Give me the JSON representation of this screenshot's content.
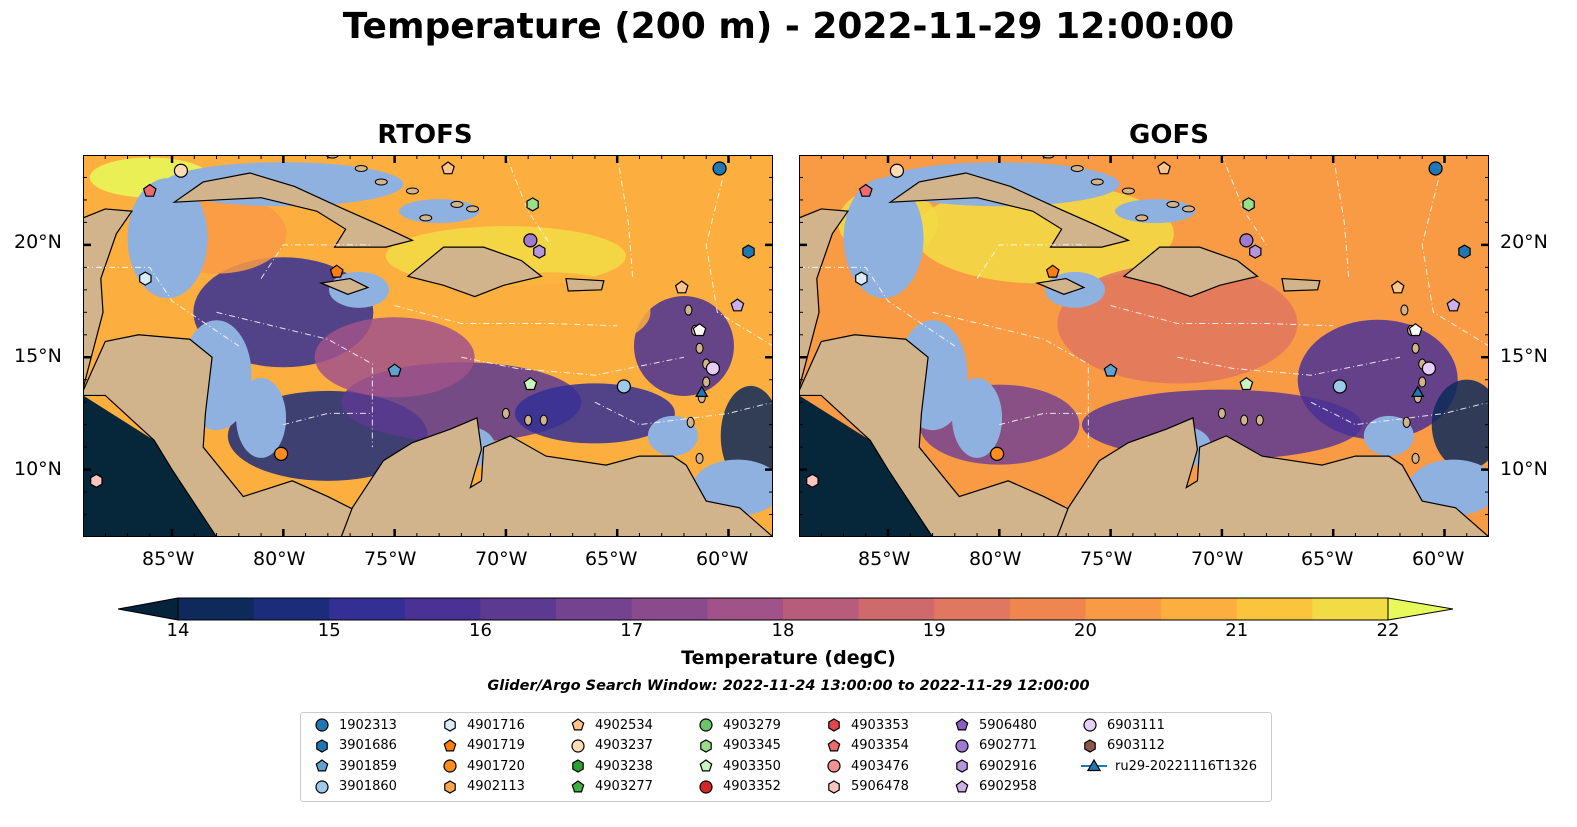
{
  "title": "Temperature (200 m) - 2022-11-29 12:00:00",
  "panels": [
    {
      "title": "RTOFS"
    },
    {
      "title": "GOFS"
    }
  ],
  "axes": {
    "lon_ticks": [
      "85°W",
      "80°W",
      "75°W",
      "70°W",
      "65°W",
      "60°W"
    ],
    "lat_ticks": [
      "20°N",
      "15°N",
      "10°N"
    ],
    "lon_range": [
      -89,
      -58
    ],
    "lat_range": [
      7,
      24
    ]
  },
  "colorbar": {
    "label": "Temperature (degC)",
    "ticks": [
      "14",
      "15",
      "16",
      "17",
      "18",
      "19",
      "20",
      "21",
      "22"
    ],
    "range": [
      14,
      22
    ],
    "extend": "both",
    "colormap": [
      "#05233a",
      "#0d2a5a",
      "#1b2d7a",
      "#342f94",
      "#4a3195",
      "#5d3a92",
      "#74438f",
      "#8a4b8d",
      "#a05289",
      "#b85c7c",
      "#ce6a6c",
      "#e07760",
      "#ef8650",
      "#f99a45",
      "#fcaf3e",
      "#fac53d",
      "#f2dc45",
      "#e8fa5b"
    ]
  },
  "colors": {
    "land": "#d2b48c",
    "shelf": "#8fb1e0",
    "deep_ocean_cold": "#06263a"
  },
  "search_window": "Glider/Argo Search Window: 2022-11-24 13:00:00 to 2022-11-29 12:00:00",
  "legend": [
    {
      "label": "1902313",
      "marker": "circle",
      "color": "#1f77b4"
    },
    {
      "label": "3901686",
      "marker": "hexagon",
      "color": "#1f77b4"
    },
    {
      "label": "3901859",
      "marker": "pentagon",
      "color": "#5fa2d1"
    },
    {
      "label": "3901860",
      "marker": "circle",
      "color": "#9ecae9"
    },
    {
      "label": "4901716",
      "marker": "hexagon",
      "color": "#d9ecf7"
    },
    {
      "label": "4901719",
      "marker": "pentagon",
      "color": "#ff7f0e"
    },
    {
      "label": "4901720",
      "marker": "circle",
      "color": "#ff8c1f"
    },
    {
      "label": "4902113",
      "marker": "hexagon",
      "color": "#ffa654"
    },
    {
      "label": "4902534",
      "marker": "pentagon",
      "color": "#ffc48a"
    },
    {
      "label": "4903237",
      "marker": "circle",
      "color": "#ffdcb5"
    },
    {
      "label": "4903238",
      "marker": "hexagon",
      "color": "#2ca02c"
    },
    {
      "label": "4903277",
      "marker": "pentagon",
      "color": "#3fb03f"
    },
    {
      "label": "4903279",
      "marker": "circle",
      "color": "#6cc46c"
    },
    {
      "label": "4903345",
      "marker": "hexagon",
      "color": "#98df8a"
    },
    {
      "label": "4903350",
      "marker": "pentagon",
      "color": "#c9f5c0"
    },
    {
      "label": "4903352",
      "marker": "circle",
      "color": "#d62728"
    },
    {
      "label": "4903353",
      "marker": "hexagon",
      "color": "#e0474a"
    },
    {
      "label": "4903354",
      "marker": "pentagon",
      "color": "#ec6b6e"
    },
    {
      "label": "4903476",
      "marker": "circle",
      "color": "#f29292"
    },
    {
      "label": "5906478",
      "marker": "hexagon",
      "color": "#ffc3c0"
    },
    {
      "label": "5906480",
      "marker": "pentagon",
      "color": "#8c5fbf"
    },
    {
      "label": "6902771",
      "marker": "circle",
      "color": "#a07ad0"
    },
    {
      "label": "6902916",
      "marker": "hexagon",
      "color": "#b795dd"
    },
    {
      "label": "6902958",
      "marker": "pentagon",
      "color": "#ccb0ea"
    },
    {
      "label": "6903111",
      "marker": "circle",
      "color": "#e6cef7"
    },
    {
      "label": "6903112",
      "marker": "hexagon",
      "color": "#8c564b"
    },
    {
      "label": "ru29-20221116T1326",
      "marker": "triangle-line",
      "color": "#1f77b4"
    }
  ],
  "floats": [
    {
      "lon": -84.6,
      "lat": 23.3,
      "marker": "circle",
      "color": "#ffdcb5"
    },
    {
      "lon": -72.6,
      "lat": 23.4,
      "marker": "pentagon",
      "color": "#ffc48a"
    },
    {
      "lon": -60.4,
      "lat": 23.4,
      "marker": "circle",
      "color": "#1f77b4"
    },
    {
      "lon": -86.0,
      "lat": 22.4,
      "marker": "pentagon",
      "color": "#ec6b6e"
    },
    {
      "lon": -68.8,
      "lat": 21.8,
      "marker": "hexagon",
      "color": "#98df8a"
    },
    {
      "lon": -68.9,
      "lat": 20.2,
      "marker": "circle",
      "color": "#a07ad0"
    },
    {
      "lon": -68.5,
      "lat": 19.7,
      "marker": "hexagon",
      "color": "#b795dd"
    },
    {
      "lon": -59.1,
      "lat": 19.7,
      "marker": "hexagon",
      "color": "#1f77b4"
    },
    {
      "lon": -86.2,
      "lat": 18.5,
      "marker": "hexagon",
      "color": "#d9ecf7"
    },
    {
      "lon": -77.6,
      "lat": 18.8,
      "marker": "pentagon",
      "color": "#ff7f0e"
    },
    {
      "lon": -62.1,
      "lat": 18.1,
      "marker": "pentagon",
      "color": "#ffc48a"
    },
    {
      "lon": -59.6,
      "lat": 17.3,
      "marker": "pentagon",
      "color": "#ccb0ea"
    },
    {
      "lon": -61.3,
      "lat": 16.2,
      "marker": "pentagon",
      "color": "#ffffff"
    },
    {
      "lon": -75.0,
      "lat": 14.4,
      "marker": "pentagon",
      "color": "#5fa2d1"
    },
    {
      "lon": -60.7,
      "lat": 14.5,
      "marker": "circle",
      "color": "#e6cef7"
    },
    {
      "lon": -68.9,
      "lat": 13.8,
      "marker": "pentagon",
      "color": "#c9f5c0"
    },
    {
      "lon": -64.7,
      "lat": 13.7,
      "marker": "circle",
      "color": "#9ecae9"
    },
    {
      "lon": -61.2,
      "lat": 13.4,
      "marker": "triangle",
      "color": "#1f77b4"
    },
    {
      "lon": -80.1,
      "lat": 10.7,
      "marker": "circle",
      "color": "#ff8c1f"
    },
    {
      "lon": -88.4,
      "lat": 9.5,
      "marker": "hexagon",
      "color": "#ffc3c0"
    }
  ]
}
